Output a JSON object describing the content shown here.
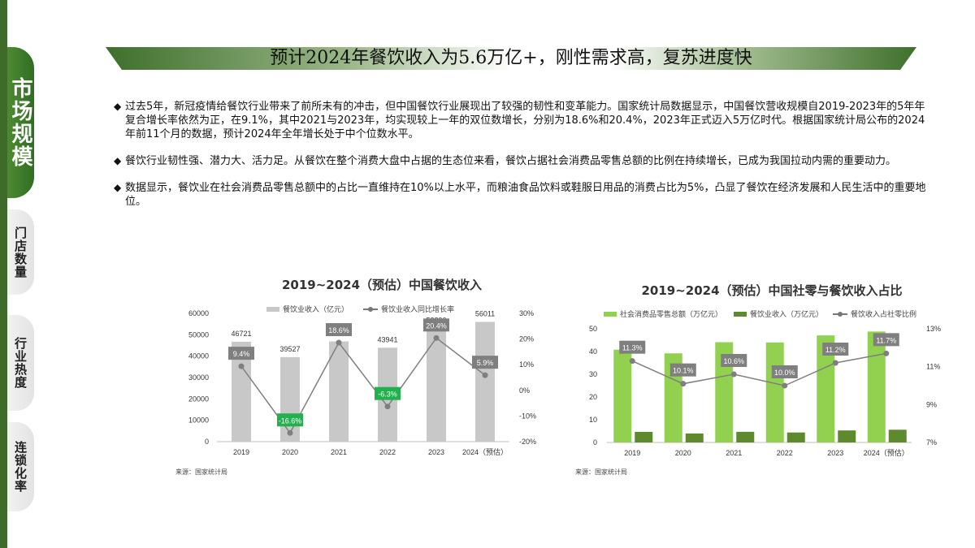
{
  "sidebar": {
    "items": [
      {
        "label": "市场规模"
      },
      {
        "label": "门店数量"
      },
      {
        "label": "行业热度"
      },
      {
        "label": "连锁化率"
      }
    ]
  },
  "page": {
    "title": "预计2024年餐饮收入为5.6万亿+，刚性需求高，复苏进度快",
    "bullets": [
      "过去5年，新冠疫情给餐饮行业带来了前所未有的冲击，但中国餐饮行业展现出了较强的韧性和变革能力。国家统计局数据显示，中国餐饮营收规模自2019-2023年的5年年复合增长率依然为正，在9.1%，其中2021与2023年，均实现较上一年的双位数增长，分别为18.6%和20.4%，2023年正式迈入5万亿时代。根据国家统计局公布的2024年前11个月的数据，预计2024年全年增长处于中个位数水平。",
      "餐饮行业韧性强、潜力大、活力足。从餐饮在整个消费大盘中占据的生态位来看，餐饮占据社会消费品零售总额的比例在持续增长，已成为我国拉动内需的重要动力。",
      "数据显示，餐饮业在社会消费品零售总额中的占比一直维持在10%以上水平，而粮油食品饮料或鞋服日用品的消费占比为5%，凸显了餐饮在经济发展和人民生活中的重要地位。"
    ],
    "bullet_marker": "◆"
  },
  "charts": {
    "left": {
      "title": "2019~2024（预估）中国餐饮收入",
      "legend_bar": "餐饮业收入（亿元）",
      "legend_line": "餐饮业收入同比增长率",
      "source": "来源：国家统计局",
      "bar_color": "#c8c8c8",
      "line_color": "#7f7f7f"
    },
    "right": {
      "title": "2019~2024（预估）中国社零与餐饮收入占比",
      "legend_bar1": "社会消费品零售总额（万亿元）",
      "legend_bar2": "餐饮业收入（万亿元）",
      "legend_line": "餐饮收入占社零比例",
      "source": "来源：国家统计局",
      "bar1_color": "#92d050",
      "bar2_color": "#5e8a2e",
      "line_color": "#7f7f7f"
    }
  },
  "chart_data": [
    {
      "type": "bar",
      "title": "2019~2024（预估）中国餐饮收入",
      "categories": [
        "2019",
        "2020",
        "2021",
        "2022",
        "2023",
        "2024（预估）"
      ],
      "series": [
        {
          "name": "餐饮业收入（亿元）",
          "type": "bar",
          "values": [
            46721,
            39527,
            46895,
            43941,
            52890,
            56011
          ],
          "value_labels": [
            "46721",
            "39527",
            "46895",
            "43941",
            "52890",
            "56011"
          ]
        },
        {
          "name": "餐饮业收入同比增长率",
          "type": "line",
          "axis": "right",
          "values": [
            9.4,
            -16.6,
            18.6,
            -6.3,
            20.4,
            5.9
          ],
          "value_labels": [
            "9.4%",
            "-16.6%",
            "18.6%",
            "-6.3%",
            "20.4%",
            "5.9%"
          ]
        }
      ],
      "y_left_ticks": [
        "0",
        "10000",
        "20000",
        "30000",
        "40000",
        "50000",
        "60000"
      ],
      "y_right_ticks": [
        "-20%",
        "-10%",
        "0%",
        "10%",
        "20%",
        "30%"
      ],
      "ylim_left": [
        0,
        60000
      ],
      "ylim_right": [
        -20,
        30
      ],
      "grid": false,
      "legend": "top"
    },
    {
      "type": "bar",
      "title": "2019~2024（预估）中国社零与餐饮收入占比",
      "categories": [
        "2019",
        "2020",
        "2021",
        "2022",
        "2023",
        "2024（预估）"
      ],
      "series": [
        {
          "name": "社会消费品零售总额（万亿元）",
          "type": "bar",
          "values": [
            40.8,
            39.2,
            44.1,
            44.0,
            47.1,
            48.8
          ]
        },
        {
          "name": "餐饮业收入（万亿元）",
          "type": "bar",
          "values": [
            4.67,
            3.95,
            4.69,
            4.39,
            5.29,
            5.6
          ]
        },
        {
          "name": "餐饮收入占社零比例",
          "type": "line",
          "axis": "right",
          "values": [
            11.3,
            10.1,
            10.6,
            10.0,
            11.2,
            11.7
          ],
          "value_labels": [
            "11.3%",
            "10.1%",
            "10.6%",
            "10.0%",
            "11.2%",
            "11.7%"
          ]
        }
      ],
      "y_left_ticks": [
        "0",
        "10",
        "20",
        "30",
        "40",
        "50"
      ],
      "y_right_ticks": [
        "7%",
        "9%",
        "11%",
        "13%"
      ],
      "ylim_left": [
        0,
        50
      ],
      "ylim_right": [
        7,
        13
      ],
      "grid": false,
      "legend": "top"
    }
  ]
}
